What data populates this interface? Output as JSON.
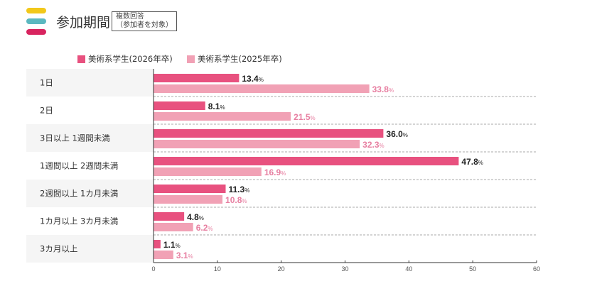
{
  "header": {
    "title": "参加期間",
    "note_line1": "複数回答",
    "note_line2": "（参加者を対象）"
  },
  "colors": {
    "series_2026": "#e8517f",
    "series_2025": "#f1a1b5",
    "label_2026": "#222222",
    "label_2025": "#e77fa1",
    "logo": [
      "#f2c81a",
      "#5bb8c0",
      "#d8245f"
    ]
  },
  "chart_data": {
    "type": "bar",
    "orientation": "horizontal",
    "title": "参加期間",
    "categories": [
      "1日",
      "2日",
      "3日以上 1週間未満",
      "1週間以上 2週間未満",
      "2週間以上 1カ月未満",
      "1カ月以上 3カ月未満",
      "3カ月以上"
    ],
    "series": [
      {
        "name": "美術系学生(2026年卒)",
        "values": [
          13.4,
          8.1,
          36.0,
          47.8,
          11.3,
          4.8,
          1.1
        ]
      },
      {
        "name": "美術系学生(2025年卒)",
        "values": [
          33.8,
          21.5,
          32.3,
          16.9,
          10.8,
          6.2,
          3.1
        ]
      }
    ],
    "unit": "%",
    "xlim": [
      0,
      60
    ],
    "xticks": [
      "0",
      "10",
      "20",
      "30",
      "40",
      "50",
      "60"
    ],
    "legend": "top"
  }
}
